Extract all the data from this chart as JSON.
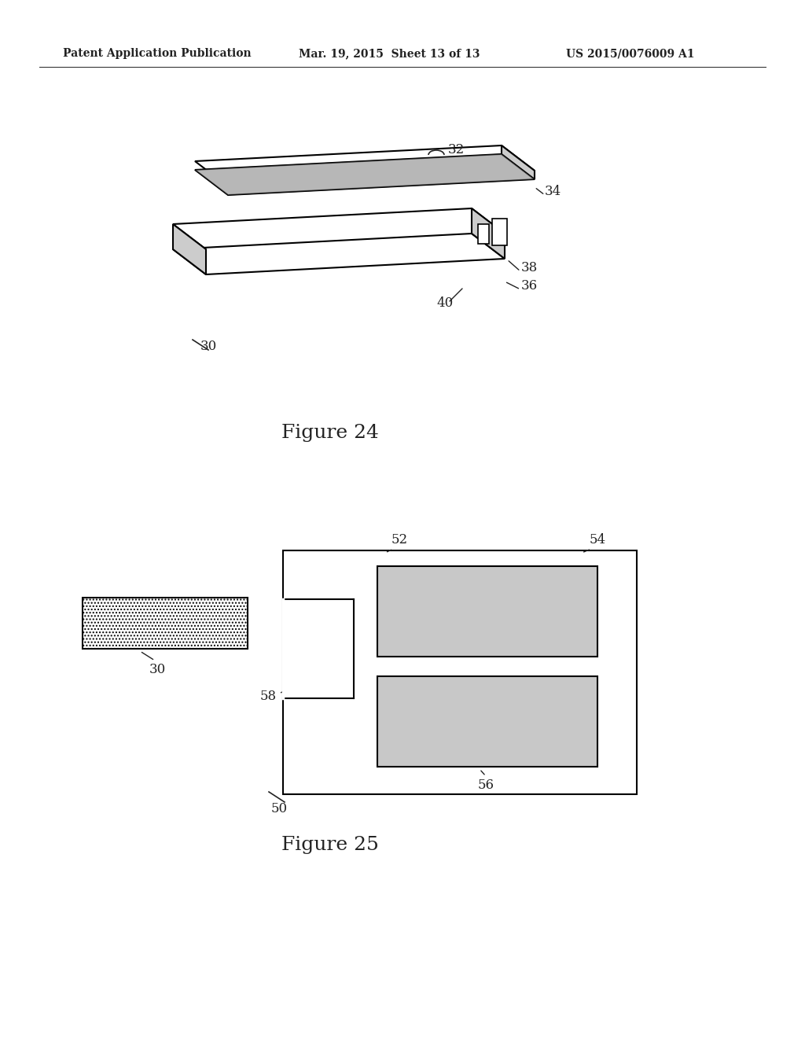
{
  "bg_color": "#ffffff",
  "header_left": "Patent Application Publication",
  "header_mid": "Mar. 19, 2015  Sheet 13 of 13",
  "header_right": "US 2015/0076009 A1",
  "fig24_label": "Figure 24",
  "fig25_label": "Figure 25",
  "label_color": "#222222",
  "hatch_pattern": ".....",
  "hatch_color": "#aaaaaa"
}
